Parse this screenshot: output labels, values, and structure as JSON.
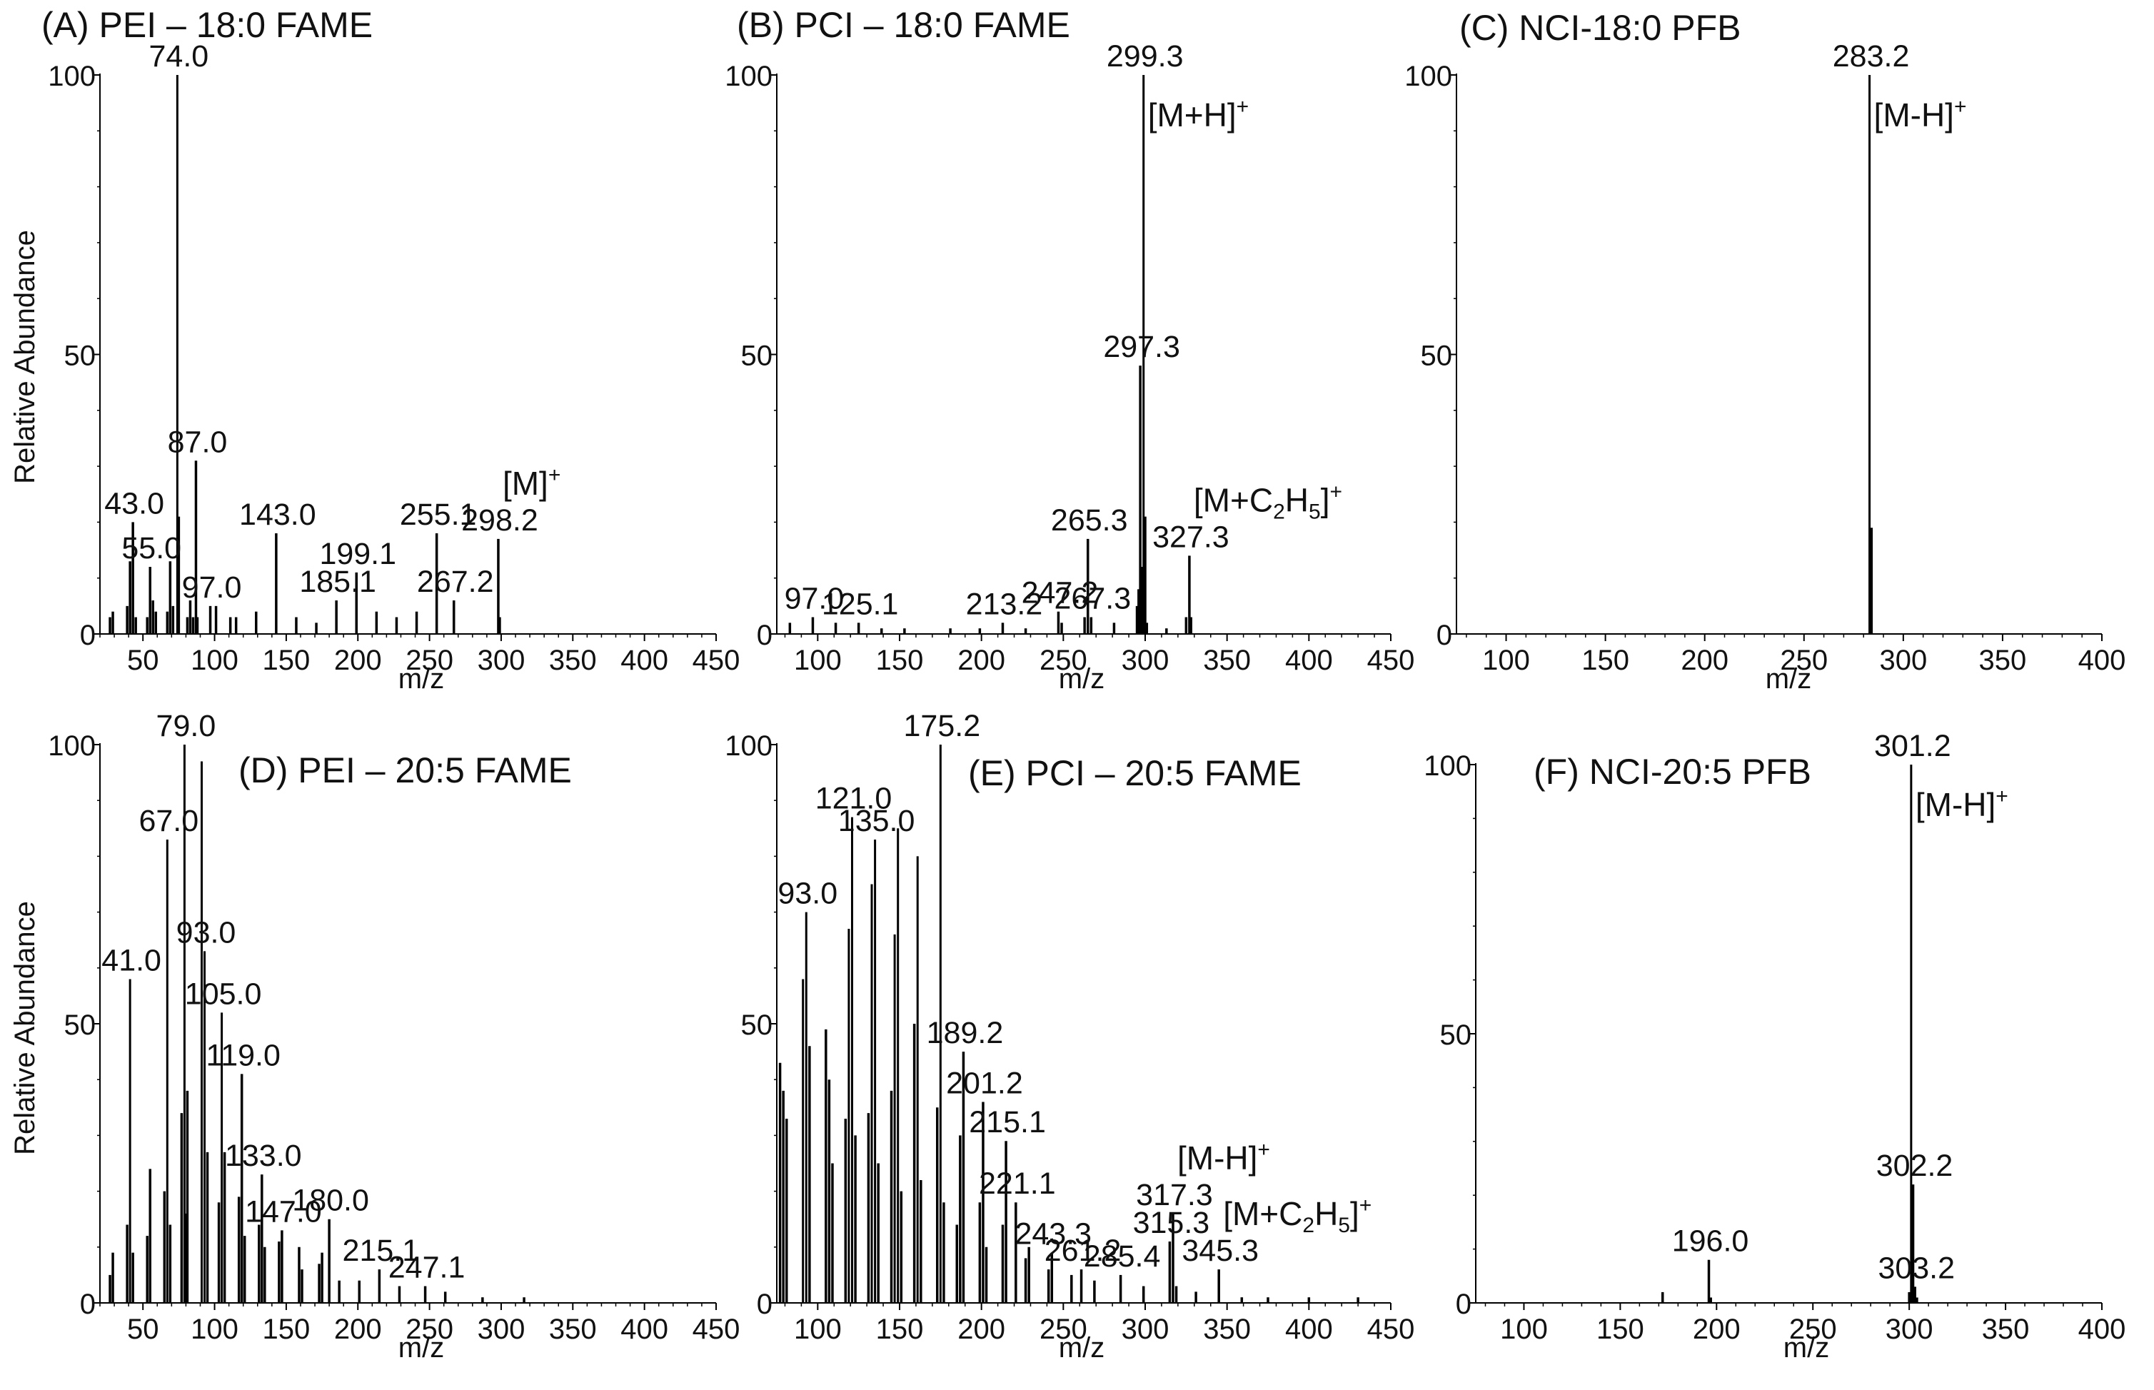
{
  "y_axis_title": "Relative  Abundance",
  "chart_data": [
    {
      "id": "A",
      "type": "bar",
      "title": "(A) PEI – 18:0 FAME",
      "xlabel": "m/z",
      "ylabel": "Relative  Abundance",
      "xlim": [
        20,
        450
      ],
      "ylim": [
        0,
        100
      ],
      "xticks": [
        "50",
        "100",
        "150",
        "200",
        "250",
        "300",
        "350",
        "400",
        "450"
      ],
      "yticks": [
        "0",
        "50",
        "100"
      ],
      "peaks": [
        {
          "mz": 27,
          "ab": 3
        },
        {
          "mz": 29,
          "ab": 4
        },
        {
          "mz": 39,
          "ab": 5
        },
        {
          "mz": 41,
          "ab": 13
        },
        {
          "mz": 43,
          "ab": 20
        },
        {
          "mz": 45,
          "ab": 3
        },
        {
          "mz": 53,
          "ab": 3
        },
        {
          "mz": 55,
          "ab": 12
        },
        {
          "mz": 57,
          "ab": 6
        },
        {
          "mz": 59,
          "ab": 4
        },
        {
          "mz": 67,
          "ab": 4
        },
        {
          "mz": 69,
          "ab": 13
        },
        {
          "mz": 71,
          "ab": 5
        },
        {
          "mz": 74,
          "ab": 100
        },
        {
          "mz": 75,
          "ab": 21
        },
        {
          "mz": 81,
          "ab": 3
        },
        {
          "mz": 83,
          "ab": 6
        },
        {
          "mz": 85,
          "ab": 3
        },
        {
          "mz": 87,
          "ab": 31
        },
        {
          "mz": 88,
          "ab": 3
        },
        {
          "mz": 97,
          "ab": 5
        },
        {
          "mz": 101,
          "ab": 5
        },
        {
          "mz": 111,
          "ab": 3
        },
        {
          "mz": 115,
          "ab": 3
        },
        {
          "mz": 129,
          "ab": 4
        },
        {
          "mz": 143,
          "ab": 18
        },
        {
          "mz": 157,
          "ab": 3
        },
        {
          "mz": 171,
          "ab": 2
        },
        {
          "mz": 185,
          "ab": 6
        },
        {
          "mz": 199,
          "ab": 11
        },
        {
          "mz": 213,
          "ab": 4
        },
        {
          "mz": 227,
          "ab": 3
        },
        {
          "mz": 241,
          "ab": 4
        },
        {
          "mz": 255,
          "ab": 18
        },
        {
          "mz": 267,
          "ab": 6
        },
        {
          "mz": 298,
          "ab": 17
        },
        {
          "mz": 299,
          "ab": 3
        }
      ],
      "labels": [
        {
          "text": "74.0",
          "mz": 74,
          "ab": 100
        },
        {
          "text": "87.0",
          "mz": 87,
          "ab": 31
        },
        {
          "text": "43.0",
          "mz": 43,
          "ab": 20
        },
        {
          "text": "55.0",
          "mz": 55,
          "ab": 12
        },
        {
          "text": "97.0",
          "mz": 97,
          "ab": 5
        },
        {
          "text": "143.0",
          "mz": 143,
          "ab": 18
        },
        {
          "text": "185.1",
          "mz": 185,
          "ab": 6
        },
        {
          "text": "199.1",
          "mz": 199,
          "ab": 11
        },
        {
          "text": "255.1",
          "mz": 255,
          "ab": 18
        },
        {
          "text": "267.2",
          "mz": 267,
          "ab": 6
        },
        {
          "text": "298.2",
          "mz": 298,
          "ab": 17
        }
      ],
      "ions": [
        {
          "base": "[M]",
          "sup": "+",
          "mz": 298,
          "ab": 17
        }
      ]
    },
    {
      "id": "B",
      "type": "bar",
      "title": "(B) PCI – 18:0 FAME",
      "xlabel": "m/z",
      "ylabel": "",
      "xlim": [
        75,
        450
      ],
      "ylim": [
        0,
        100
      ],
      "xticks": [
        "100",
        "150",
        "200",
        "250",
        "300",
        "350",
        "400",
        "450"
      ],
      "yticks": [
        "0",
        "50",
        "100"
      ],
      "peaks": [
        {
          "mz": 83,
          "ab": 2
        },
        {
          "mz": 97,
          "ab": 3
        },
        {
          "mz": 111,
          "ab": 2
        },
        {
          "mz": 125,
          "ab": 2
        },
        {
          "mz": 139,
          "ab": 1
        },
        {
          "mz": 153,
          "ab": 1
        },
        {
          "mz": 181,
          "ab": 1
        },
        {
          "mz": 199,
          "ab": 1
        },
        {
          "mz": 213,
          "ab": 2
        },
        {
          "mz": 227,
          "ab": 1
        },
        {
          "mz": 247,
          "ab": 4
        },
        {
          "mz": 249,
          "ab": 2
        },
        {
          "mz": 263,
          "ab": 3
        },
        {
          "mz": 265,
          "ab": 17
        },
        {
          "mz": 267,
          "ab": 3
        },
        {
          "mz": 281,
          "ab": 2
        },
        {
          "mz": 295,
          "ab": 5
        },
        {
          "mz": 296,
          "ab": 8
        },
        {
          "mz": 297,
          "ab": 48
        },
        {
          "mz": 298,
          "ab": 12
        },
        {
          "mz": 299,
          "ab": 100
        },
        {
          "mz": 300,
          "ab": 21
        },
        {
          "mz": 301,
          "ab": 2
        },
        {
          "mz": 313,
          "ab": 1
        },
        {
          "mz": 325,
          "ab": 3
        },
        {
          "mz": 327,
          "ab": 14
        },
        {
          "mz": 328,
          "ab": 3
        }
      ],
      "labels": [
        {
          "text": "299.3",
          "mz": 299,
          "ab": 100
        },
        {
          "text": "297.3",
          "mz": 297,
          "ab": 48
        },
        {
          "text": "265.3",
          "mz": 265,
          "ab": 17
        },
        {
          "text": "327.3",
          "mz": 327,
          "ab": 14
        },
        {
          "text": "97.0",
          "mz": 97,
          "ab": 3
        },
        {
          "text": "125.1",
          "mz": 125,
          "ab": 2
        },
        {
          "text": "213.2",
          "mz": 213,
          "ab": 2
        },
        {
          "text": "247.2",
          "mz": 247,
          "ab": 4
        },
        {
          "text": "267.3",
          "mz": 267,
          "ab": 3
        }
      ],
      "ions": [
        {
          "base": "[M+H]",
          "sup": "+",
          "mz": 299,
          "ab": 100
        },
        {
          "base": "[M+C",
          "sub1": "2",
          "mid": "H",
          "sub2": "5",
          "end": "]",
          "sup": "+",
          "mz": 327,
          "ab": 14
        }
      ]
    },
    {
      "id": "C",
      "type": "bar",
      "title": "(C) NCI-18:0 PFB",
      "xlabel": "m/z",
      "ylabel": "",
      "xlim": [
        75,
        400
      ],
      "ylim": [
        0,
        100
      ],
      "xticks": [
        "100",
        "150",
        "200",
        "250",
        "300",
        "350",
        "400"
      ],
      "yticks": [
        "0",
        "50",
        "100"
      ],
      "peaks": [
        {
          "mz": 283,
          "ab": 100
        },
        {
          "mz": 284,
          "ab": 19
        }
      ],
      "labels": [
        {
          "text": "283.2",
          "mz": 283,
          "ab": 100
        }
      ],
      "ions": [
        {
          "base": "[M-H]",
          "sup": "+",
          "mz": 283,
          "ab": 100
        }
      ]
    },
    {
      "id": "D",
      "type": "bar",
      "title": "(D) PEI – 20:5 FAME",
      "xlabel": "m/z",
      "ylabel": "Relative  Abundance",
      "xlim": [
        20,
        450
      ],
      "ylim": [
        0,
        100
      ],
      "xticks": [
        "50",
        "100",
        "150",
        "200",
        "250",
        "300",
        "350",
        "400",
        "450"
      ],
      "yticks": [
        "0",
        "50",
        "100"
      ],
      "peaks": [
        {
          "mz": 27,
          "ab": 5
        },
        {
          "mz": 29,
          "ab": 9
        },
        {
          "mz": 39,
          "ab": 14
        },
        {
          "mz": 41,
          "ab": 58
        },
        {
          "mz": 43,
          "ab": 9
        },
        {
          "mz": 53,
          "ab": 12
        },
        {
          "mz": 55,
          "ab": 24
        },
        {
          "mz": 65,
          "ab": 20
        },
        {
          "mz": 67,
          "ab": 83
        },
        {
          "mz": 69,
          "ab": 14
        },
        {
          "mz": 77,
          "ab": 34
        },
        {
          "mz": 79,
          "ab": 100
        },
        {
          "mz": 80,
          "ab": 16
        },
        {
          "mz": 81,
          "ab": 38
        },
        {
          "mz": 91,
          "ab": 97
        },
        {
          "mz": 93,
          "ab": 63
        },
        {
          "mz": 95,
          "ab": 27
        },
        {
          "mz": 103,
          "ab": 18
        },
        {
          "mz": 105,
          "ab": 52
        },
        {
          "mz": 107,
          "ab": 27
        },
        {
          "mz": 117,
          "ab": 19
        },
        {
          "mz": 119,
          "ab": 41
        },
        {
          "mz": 121,
          "ab": 12
        },
        {
          "mz": 131,
          "ab": 14
        },
        {
          "mz": 133,
          "ab": 23
        },
        {
          "mz": 135,
          "ab": 10
        },
        {
          "mz": 145,
          "ab": 11
        },
        {
          "mz": 147,
          "ab": 13
        },
        {
          "mz": 159,
          "ab": 10
        },
        {
          "mz": 161,
          "ab": 6
        },
        {
          "mz": 173,
          "ab": 7
        },
        {
          "mz": 175,
          "ab": 9
        },
        {
          "mz": 180,
          "ab": 15
        },
        {
          "mz": 187,
          "ab": 4
        },
        {
          "mz": 201,
          "ab": 4
        },
        {
          "mz": 215,
          "ab": 6
        },
        {
          "mz": 229,
          "ab": 3
        },
        {
          "mz": 247,
          "ab": 3
        },
        {
          "mz": 261,
          "ab": 2
        },
        {
          "mz": 287,
          "ab": 1
        },
        {
          "mz": 316,
          "ab": 1
        }
      ],
      "labels": [
        {
          "text": "79.0",
          "mz": 79,
          "ab": 100
        },
        {
          "text": "67.0",
          "mz": 67,
          "ab": 83
        },
        {
          "text": "41.0",
          "mz": 41,
          "ab": 58
        },
        {
          "text": "93.0",
          "mz": 93,
          "ab": 63
        },
        {
          "text": "105.0",
          "mz": 105,
          "ab": 52
        },
        {
          "text": "119.0",
          "mz": 119,
          "ab": 41
        },
        {
          "text": "133.0",
          "mz": 133,
          "ab": 23
        },
        {
          "text": "147.0",
          "mz": 147,
          "ab": 13
        },
        {
          "text": "180.0",
          "mz": 180,
          "ab": 15
        },
        {
          "text": "215.1",
          "mz": 215,
          "ab": 6
        },
        {
          "text": "247.1",
          "mz": 247,
          "ab": 3
        }
      ],
      "ions": []
    },
    {
      "id": "E",
      "type": "bar",
      "title": "(E) PCI – 20:5 FAME",
      "xlabel": "m/z",
      "ylabel": "",
      "xlim": [
        75,
        450
      ],
      "ylim": [
        0,
        100
      ],
      "xticks": [
        "100",
        "150",
        "200",
        "250",
        "300",
        "350",
        "400",
        "450"
      ],
      "yticks": [
        "0",
        "50",
        "100"
      ],
      "peaks": [
        {
          "mz": 77,
          "ab": 43
        },
        {
          "mz": 79,
          "ab": 38
        },
        {
          "mz": 81,
          "ab": 33
        },
        {
          "mz": 91,
          "ab": 58
        },
        {
          "mz": 93,
          "ab": 70
        },
        {
          "mz": 95,
          "ab": 46
        },
        {
          "mz": 105,
          "ab": 49
        },
        {
          "mz": 107,
          "ab": 40
        },
        {
          "mz": 109,
          "ab": 25
        },
        {
          "mz": 117,
          "ab": 33
        },
        {
          "mz": 119,
          "ab": 67
        },
        {
          "mz": 121,
          "ab": 87
        },
        {
          "mz": 123,
          "ab": 30
        },
        {
          "mz": 131,
          "ab": 34
        },
        {
          "mz": 133,
          "ab": 75
        },
        {
          "mz": 135,
          "ab": 83
        },
        {
          "mz": 137,
          "ab": 25
        },
        {
          "mz": 145,
          "ab": 38
        },
        {
          "mz": 147,
          "ab": 66
        },
        {
          "mz": 149,
          "ab": 85
        },
        {
          "mz": 151,
          "ab": 20
        },
        {
          "mz": 159,
          "ab": 50
        },
        {
          "mz": 161,
          "ab": 80
        },
        {
          "mz": 163,
          "ab": 22
        },
        {
          "mz": 173,
          "ab": 35
        },
        {
          "mz": 175,
          "ab": 100
        },
        {
          "mz": 177,
          "ab": 18
        },
        {
          "mz": 185,
          "ab": 14
        },
        {
          "mz": 187,
          "ab": 30
        },
        {
          "mz": 189,
          "ab": 45
        },
        {
          "mz": 199,
          "ab": 18
        },
        {
          "mz": 201,
          "ab": 36
        },
        {
          "mz": 203,
          "ab": 10
        },
        {
          "mz": 213,
          "ab": 14
        },
        {
          "mz": 215,
          "ab": 29
        },
        {
          "mz": 221,
          "ab": 18
        },
        {
          "mz": 227,
          "ab": 8
        },
        {
          "mz": 229,
          "ab": 10
        },
        {
          "mz": 241,
          "ab": 6
        },
        {
          "mz": 243,
          "ab": 9
        },
        {
          "mz": 255,
          "ab": 5
        },
        {
          "mz": 261,
          "ab": 6
        },
        {
          "mz": 269,
          "ab": 4
        },
        {
          "mz": 285,
          "ab": 5
        },
        {
          "mz": 299,
          "ab": 3
        },
        {
          "mz": 315,
          "ab": 11
        },
        {
          "mz": 317,
          "ab": 16
        },
        {
          "mz": 319,
          "ab": 3
        },
        {
          "mz": 331,
          "ab": 2
        },
        {
          "mz": 345,
          "ab": 6
        },
        {
          "mz": 359,
          "ab": 1
        },
        {
          "mz": 375,
          "ab": 1
        },
        {
          "mz": 400,
          "ab": 1
        },
        {
          "mz": 430,
          "ab": 1
        }
      ],
      "labels": [
        {
          "text": "175.2",
          "mz": 175,
          "ab": 100
        },
        {
          "text": "121.0",
          "mz": 121,
          "ab": 87
        },
        {
          "text": "135.0",
          "mz": 135,
          "ab": 83
        },
        {
          "text": "93.0",
          "mz": 93,
          "ab": 70
        },
        {
          "text": "189.2",
          "mz": 189,
          "ab": 45
        },
        {
          "text": "201.2",
          "mz": 201,
          "ab": 36
        },
        {
          "text": "215.1",
          "mz": 215,
          "ab": 29
        },
        {
          "text": "221.1",
          "mz": 221,
          "ab": 18
        },
        {
          "text": "243.3",
          "mz": 243,
          "ab": 9
        },
        {
          "text": "261.2",
          "mz": 261,
          "ab": 6
        },
        {
          "text": "285.4",
          "mz": 285,
          "ab": 5
        },
        {
          "text": "315.3",
          "mz": 315,
          "ab": 11
        },
        {
          "text": "317.3",
          "mz": 317,
          "ab": 16
        },
        {
          "text": "345.3",
          "mz": 345,
          "ab": 6
        }
      ],
      "ions": [
        {
          "base": "[M-H]",
          "sup": "+",
          "mz": 317,
          "ab": 16
        },
        {
          "base": "[M+C",
          "sub1": "2",
          "mid": "H",
          "sub2": "5",
          "end": "]",
          "sup": "+",
          "mz": 345,
          "ab": 6
        }
      ]
    },
    {
      "id": "F",
      "type": "bar",
      "title": "(F) NCI-20:5 PFB",
      "xlabel": "m/z",
      "ylabel": "",
      "xlim": [
        75,
        400
      ],
      "ylim": [
        0,
        100
      ],
      "xticks": [
        "100",
        "150",
        "200",
        "250",
        "300",
        "350",
        "400"
      ],
      "yticks": [
        "0",
        "50",
        "100"
      ],
      "peaks": [
        {
          "mz": 172,
          "ab": 2
        },
        {
          "mz": 196,
          "ab": 8
        },
        {
          "mz": 197,
          "ab": 1
        },
        {
          "mz": 300,
          "ab": 2
        },
        {
          "mz": 301,
          "ab": 100
        },
        {
          "mz": 302,
          "ab": 22
        },
        {
          "mz": 303,
          "ab": 3
        },
        {
          "mz": 304,
          "ab": 1
        }
      ],
      "labels": [
        {
          "text": "301.2",
          "mz": 301,
          "ab": 100
        },
        {
          "text": "302.2",
          "mz": 302,
          "ab": 22
        },
        {
          "text": "303.2",
          "mz": 303,
          "ab": 3
        },
        {
          "text": "196.0",
          "mz": 196,
          "ab": 8
        }
      ],
      "ions": [
        {
          "base": "[M-H]",
          "sup": "+",
          "mz": 301,
          "ab": 100
        }
      ]
    }
  ]
}
